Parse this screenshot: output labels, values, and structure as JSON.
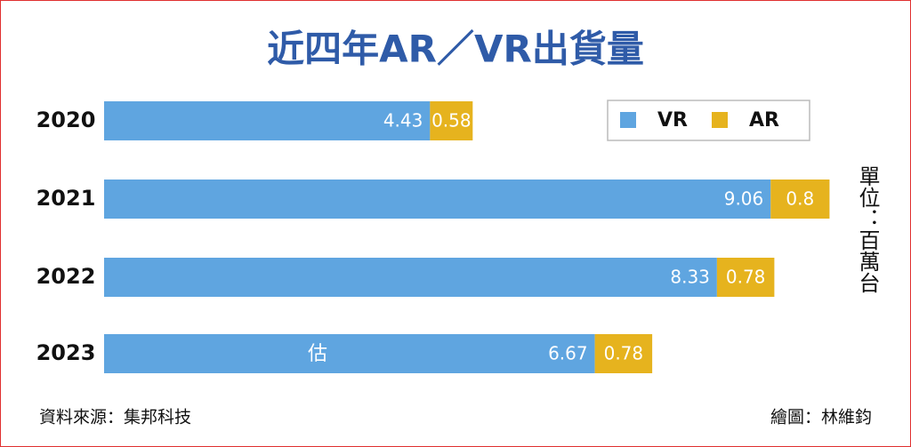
{
  "chart_data": {
    "type": "stacked_barh",
    "title": "近四年AR／VR出貨量",
    "categories": [
      "2020",
      "2021",
      "2022",
      "2023"
    ],
    "series": [
      {
        "name": "VR",
        "color": "#5fa5e0",
        "values": [
          4.43,
          9.06,
          8.33,
          6.67
        ]
      },
      {
        "name": "AR",
        "color": "#e6b31e",
        "values": [
          0.58,
          0.8,
          0.78,
          0.78
        ]
      }
    ],
    "annotations": [
      "估"
    ],
    "unit": "單位：百萬台",
    "source": "資料來源：集邦科技",
    "credit": "繪圖：林維鈞"
  }
}
